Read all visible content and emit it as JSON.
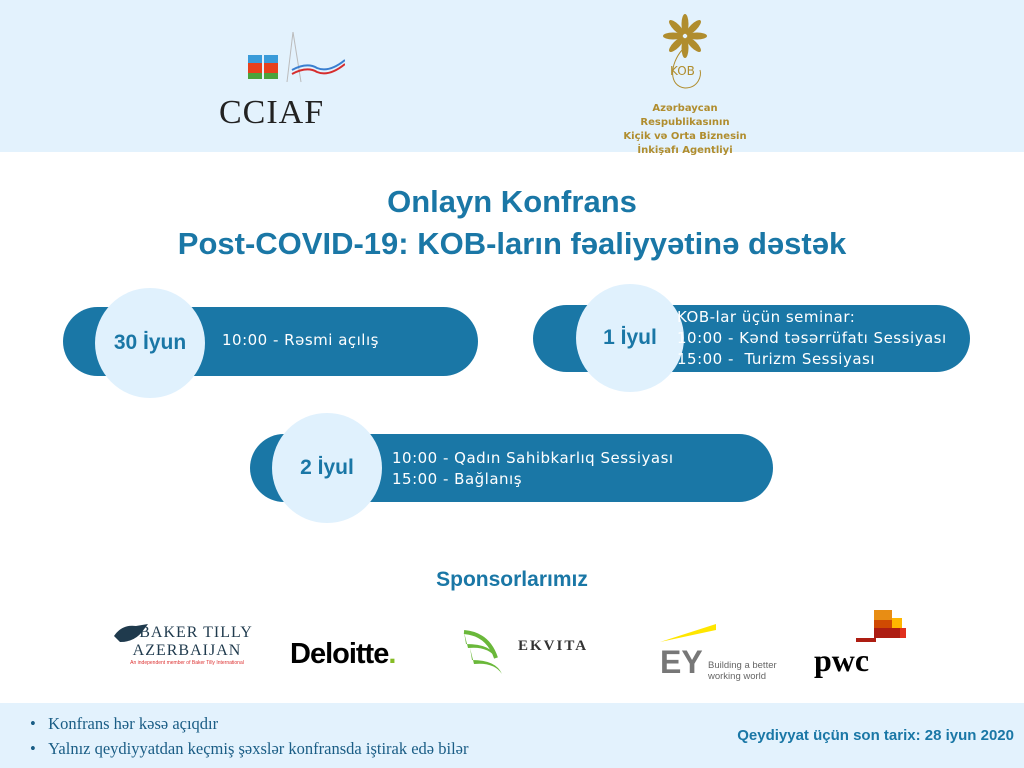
{
  "header": {
    "logo_left": "CCIAF",
    "logo_right": {
      "emblem": "KOB",
      "lines": [
        "Azərbaycan Respublikasının",
        "Kiçik və Orta Biznesin",
        "İnkişafı Agentliyi"
      ]
    }
  },
  "title": {
    "line1": "Onlayn Konfrans",
    "line2": "Post-COVID-19: KOB-ların fəaliyyətinə dəstək"
  },
  "sessions": [
    {
      "date": "30 İyun",
      "lines": [
        "10:00 - Rəsmi açılış"
      ]
    },
    {
      "date": "1 İyul",
      "lines": [
        "KOB-lar üçün seminar:",
        "10:00 - Kənd təsərrüfatı Sessiyası",
        "15:00 -  Turizm Sessiyası"
      ]
    },
    {
      "date": "2 İyul",
      "lines": [
        "10:00 - Qadın Sahibkarlıq Sessiyası",
        "15:00 - Bağlanış"
      ]
    }
  ],
  "sponsors": {
    "heading": "Sponsorlarımız",
    "logos": [
      {
        "name": "BAKER TILLY",
        "name2": "AZERBAIJAN",
        "tag": "An independent member of Baker Tilly International"
      },
      {
        "name": "Deloitte"
      },
      {
        "name": "EKVITA"
      },
      {
        "name": "EY",
        "tag": "Building a better working world"
      },
      {
        "name": "pwc"
      }
    ]
  },
  "footer": {
    "bullets": [
      "Konfrans hər kəsə açıqdır",
      "Yalnız qeydiyyatdan keçmiş şəxslər konfransda iştirak edə bilər"
    ],
    "deadline": "Qeydiyyat üçün son tarix: 28 iyun 2020"
  },
  "colors": {
    "primary": "#1a77a6",
    "light": "#e3f2fd",
    "gold": "#b08d2e"
  }
}
